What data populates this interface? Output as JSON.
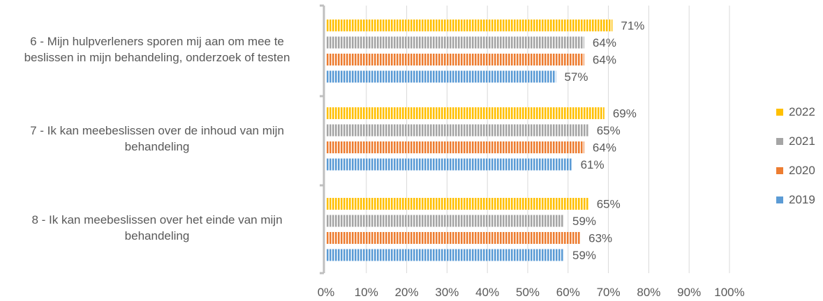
{
  "chart_data": {
    "type": "bar",
    "orientation": "horizontal",
    "categories": [
      "6 - Mijn hulpverleners sporen mij aan om mee te beslissen in mijn behandeling, onderzoek of testen",
      "7 - Ik kan meebeslissen over de inhoud van mijn behandeling",
      "8 - Ik kan meebeslissen over het einde van mijn behandeling"
    ],
    "category_lines": [
      [
        "6 - Mijn hulpverleners sporen mij aan om mee te",
        "beslissen in mijn behandeling, onderzoek of testen"
      ],
      [
        "7 - Ik kan meebeslissen over de inhoud van mijn",
        "behandeling"
      ],
      [
        "8 - Ik kan meebeslissen over het einde van mijn",
        "behandeling"
      ]
    ],
    "series": [
      {
        "name": "2022",
        "color": "#FFC000",
        "values": [
          71,
          69,
          65
        ],
        "labels": [
          "71%",
          "69%",
          "65%"
        ]
      },
      {
        "name": "2021",
        "color": "#A5A5A5",
        "values": [
          64,
          65,
          59
        ],
        "labels": [
          "64%",
          "65%",
          "59%"
        ]
      },
      {
        "name": "2020",
        "color": "#ED7D31",
        "values": [
          64,
          64,
          63
        ],
        "labels": [
          "64%",
          "64%",
          "63%"
        ]
      },
      {
        "name": "2019",
        "color": "#5B9BD5",
        "values": [
          57,
          61,
          59
        ],
        "labels": [
          "57%",
          "61%",
          "59%"
        ]
      }
    ],
    "xlim": [
      0,
      100
    ],
    "xticks": [
      "0%",
      "10%",
      "20%",
      "30%",
      "40%",
      "50%",
      "60%",
      "70%",
      "80%",
      "90%",
      "100%"
    ],
    "grid": true,
    "legend_position": "right",
    "title": "",
    "xlabel": "",
    "ylabel": ""
  }
}
